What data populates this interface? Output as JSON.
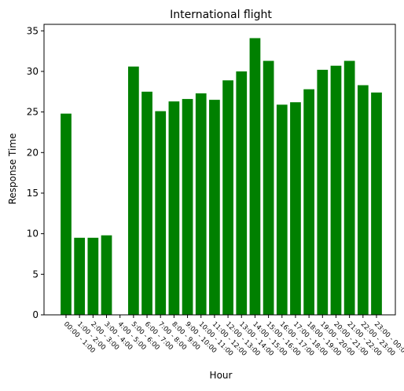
{
  "chart_data": {
    "type": "bar",
    "title": "International flight",
    "xlabel": "Hour",
    "ylabel": "Response Time",
    "categories": [
      "00:00 - 1:00",
      "1:00 - 2:00",
      "2:00 - 3:00",
      "3:00 - 4:00",
      "4:00 - 5:00",
      "5:00 - 6:00",
      "6:00 - 7:00",
      "7:00 - 8:00",
      "8:00 - 9:00",
      "9:00 - 10:00",
      "10:00 - 11:00",
      "11:00 - 12:00",
      "12:00 - 13:00",
      "13:00 - 14:00",
      "14:00 - 15:00",
      "15:00 - 16:00",
      "16:00 - 17:00",
      "17:00 - 18:00",
      "18:00 - 19:00",
      "19:00 - 20:00",
      "20:00 - 21:00",
      "21:00 - 22:00",
      "22:00 - 23:00",
      "23:00 - 00:00"
    ],
    "values": [
      24.8,
      9.5,
      9.5,
      9.8,
      0,
      30.6,
      27.5,
      25.1,
      26.3,
      26.6,
      27.3,
      26.5,
      28.9,
      30.0,
      34.1,
      31.3,
      25.9,
      26.2,
      27.8,
      30.2,
      30.7,
      31.3,
      28.3,
      27.4
    ],
    "ylim": [
      0,
      35.8
    ],
    "yticks": [
      0,
      5,
      10,
      15,
      20,
      25,
      30,
      35
    ],
    "bar_color": "#008000",
    "grid": false
  }
}
